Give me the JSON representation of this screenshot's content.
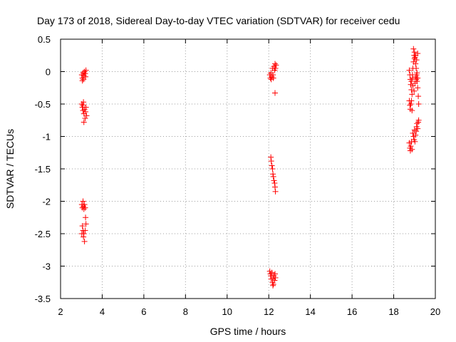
{
  "chart_data": {
    "type": "scatter",
    "title": "Day 173 of 2018, Sidereal Day-to-day VTEC variation (SDTVAR) for receiver cedu",
    "xlabel": "GPS time / hours",
    "ylabel": "SDTVAR / TECUs",
    "xlim": [
      2,
      20
    ],
    "ylim": [
      -3.5,
      0.5
    ],
    "xticks": [
      "2",
      "4",
      "6",
      "8",
      "10",
      "12",
      "14",
      "16",
      "18",
      "20"
    ],
    "yticks": [
      "0.5",
      "0",
      "-0.5",
      "-1",
      "-1.5",
      "-2",
      "-2.5",
      "-3",
      "-3.5"
    ],
    "grid": true,
    "marker": "+",
    "series_color": "#ff0000",
    "series": [
      {
        "name": "SDTVAR",
        "points": [
          [
            3.02,
            -0.05
          ],
          [
            3.05,
            -0.1
          ],
          [
            3.08,
            -0.02
          ],
          [
            3.1,
            -0.12
          ],
          [
            3.12,
            -0.06
          ],
          [
            3.15,
            0.0
          ],
          [
            3.18,
            -0.03
          ],
          [
            3.2,
            -0.08
          ],
          [
            3.22,
            0.02
          ],
          [
            3.05,
            -0.14
          ],
          [
            3.02,
            -0.5
          ],
          [
            3.05,
            -0.55
          ],
          [
            3.08,
            -0.6
          ],
          [
            3.1,
            -0.47
          ],
          [
            3.12,
            -0.65
          ],
          [
            3.15,
            -0.58
          ],
          [
            3.18,
            -0.72
          ],
          [
            3.2,
            -0.62
          ],
          [
            3.22,
            -0.55
          ],
          [
            3.12,
            -0.78
          ],
          [
            3.25,
            -0.68
          ],
          [
            3.07,
            -0.52
          ],
          [
            3.02,
            -2.05
          ],
          [
            3.05,
            -2.1
          ],
          [
            3.08,
            -2.0
          ],
          [
            3.1,
            -2.08
          ],
          [
            3.12,
            -2.12
          ],
          [
            3.15,
            -2.05
          ],
          [
            3.18,
            -2.1
          ],
          [
            3.02,
            -2.5
          ],
          [
            3.05,
            -2.38
          ],
          [
            3.08,
            -2.45
          ],
          [
            3.1,
            -2.55
          ],
          [
            3.12,
            -2.5
          ],
          [
            3.15,
            -2.62
          ],
          [
            3.18,
            -2.45
          ],
          [
            3.2,
            -2.25
          ],
          [
            3.22,
            -2.35
          ],
          [
            12.05,
            -0.05
          ],
          [
            12.08,
            -0.1
          ],
          [
            12.1,
            -0.02
          ],
          [
            12.12,
            -0.12
          ],
          [
            12.15,
            -0.08
          ],
          [
            12.18,
            0.05
          ],
          [
            12.2,
            -0.05
          ],
          [
            12.22,
            -0.1
          ],
          [
            12.25,
            0.08
          ],
          [
            12.28,
            0.02
          ],
          [
            12.3,
            0.12
          ],
          [
            12.32,
            0.05
          ],
          [
            12.35,
            0.1
          ],
          [
            12.3,
            -0.33
          ],
          [
            12.1,
            -1.32
          ],
          [
            12.12,
            -1.38
          ],
          [
            12.15,
            -1.45
          ],
          [
            12.18,
            -1.5
          ],
          [
            12.2,
            -1.58
          ],
          [
            12.22,
            -1.62
          ],
          [
            12.25,
            -1.68
          ],
          [
            12.28,
            -1.72
          ],
          [
            12.3,
            -1.78
          ],
          [
            12.32,
            -1.85
          ],
          [
            12.05,
            -3.08
          ],
          [
            12.08,
            -3.12
          ],
          [
            12.1,
            -3.15
          ],
          [
            12.12,
            -3.2
          ],
          [
            12.15,
            -3.1
          ],
          [
            12.18,
            -3.25
          ],
          [
            12.2,
            -3.18
          ],
          [
            12.22,
            -3.28
          ],
          [
            12.25,
            -3.15
          ],
          [
            12.28,
            -3.22
          ],
          [
            12.3,
            -3.12
          ],
          [
            12.32,
            -3.18
          ],
          [
            12.2,
            -3.3
          ],
          [
            18.75,
            0.02
          ],
          [
            18.78,
            -0.05
          ],
          [
            18.8,
            -0.12
          ],
          [
            18.82,
            -0.2
          ],
          [
            18.85,
            -0.28
          ],
          [
            18.88,
            -0.35
          ],
          [
            18.9,
            -0.1
          ],
          [
            18.92,
            0.05
          ],
          [
            18.95,
            0.15
          ],
          [
            18.98,
            0.25
          ],
          [
            19.0,
            0.3
          ],
          [
            19.02,
            0.22
          ],
          [
            19.05,
            0.12
          ],
          [
            19.08,
            0.05
          ],
          [
            19.1,
            -0.05
          ],
          [
            19.12,
            -0.15
          ],
          [
            19.15,
            -0.25
          ],
          [
            19.18,
            -0.38
          ],
          [
            19.2,
            -0.5
          ],
          [
            18.75,
            -0.45
          ],
          [
            18.78,
            -0.52
          ],
          [
            18.8,
            -0.58
          ],
          [
            18.82,
            -0.5
          ],
          [
            18.85,
            -0.45
          ],
          [
            18.88,
            -0.6
          ],
          [
            18.95,
            0.35
          ],
          [
            19.0,
            0.2
          ],
          [
            19.05,
            0.25
          ],
          [
            19.1,
            0.18
          ],
          [
            19.15,
            0.28
          ],
          [
            18.92,
            -0.22
          ],
          [
            18.98,
            -0.3
          ],
          [
            19.02,
            -0.18
          ],
          [
            19.05,
            -0.08
          ],
          [
            18.85,
            -0.15
          ],
          [
            18.9,
            -0.05
          ],
          [
            19.08,
            -0.12
          ],
          [
            19.12,
            -0.02
          ],
          [
            19.15,
            -0.1
          ],
          [
            18.75,
            -1.1
          ],
          [
            18.78,
            -1.18
          ],
          [
            18.8,
            -1.22
          ],
          [
            18.82,
            -1.15
          ],
          [
            18.85,
            -1.08
          ],
          [
            18.88,
            -1.2
          ],
          [
            18.92,
            -0.95
          ],
          [
            18.95,
            -1.0
          ],
          [
            18.98,
            -1.05
          ],
          [
            19.0,
            -0.9
          ],
          [
            19.02,
            -1.08
          ],
          [
            19.05,
            -0.98
          ],
          [
            19.08,
            -0.92
          ],
          [
            19.1,
            -0.85
          ],
          [
            19.12,
            -0.8
          ],
          [
            19.15,
            -0.88
          ],
          [
            19.18,
            -0.78
          ],
          [
            19.2,
            -0.75
          ]
        ]
      }
    ]
  }
}
